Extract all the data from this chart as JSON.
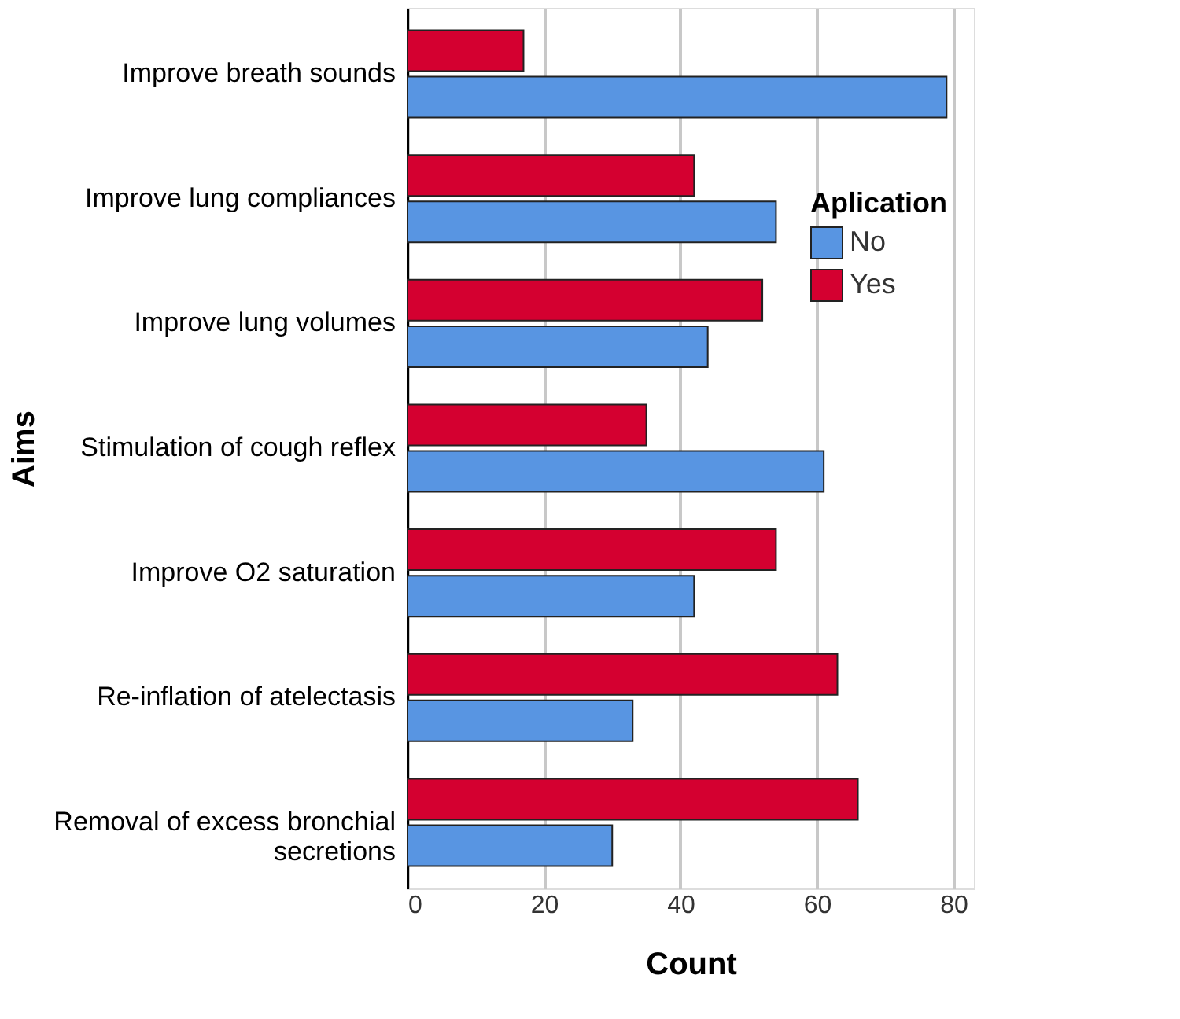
{
  "chart_data": {
    "type": "bar",
    "orientation": "horizontal",
    "xlabel": "Count",
    "ylabel": "Aims",
    "legend_title": "Aplication",
    "categories": [
      "Improve breath sounds",
      "Improve lung compliances",
      "Improve lung volumes",
      "Stimulation of cough reflex",
      "Improve O2 saturation",
      "Re-inflation of atelectasis",
      "Removal of excess bronchial secretions"
    ],
    "series": [
      {
        "name": "No",
        "color": "#5895e2",
        "values": [
          79,
          54,
          44,
          61,
          42,
          33,
          30
        ]
      },
      {
        "name": "Yes",
        "color": "#d40030",
        "values": [
          17,
          42,
          52,
          35,
          54,
          63,
          66
        ]
      }
    ],
    "xlim": [
      0,
      83
    ],
    "xticks": [
      0,
      20,
      40,
      60,
      80
    ],
    "grid": "x",
    "legend": "right"
  }
}
